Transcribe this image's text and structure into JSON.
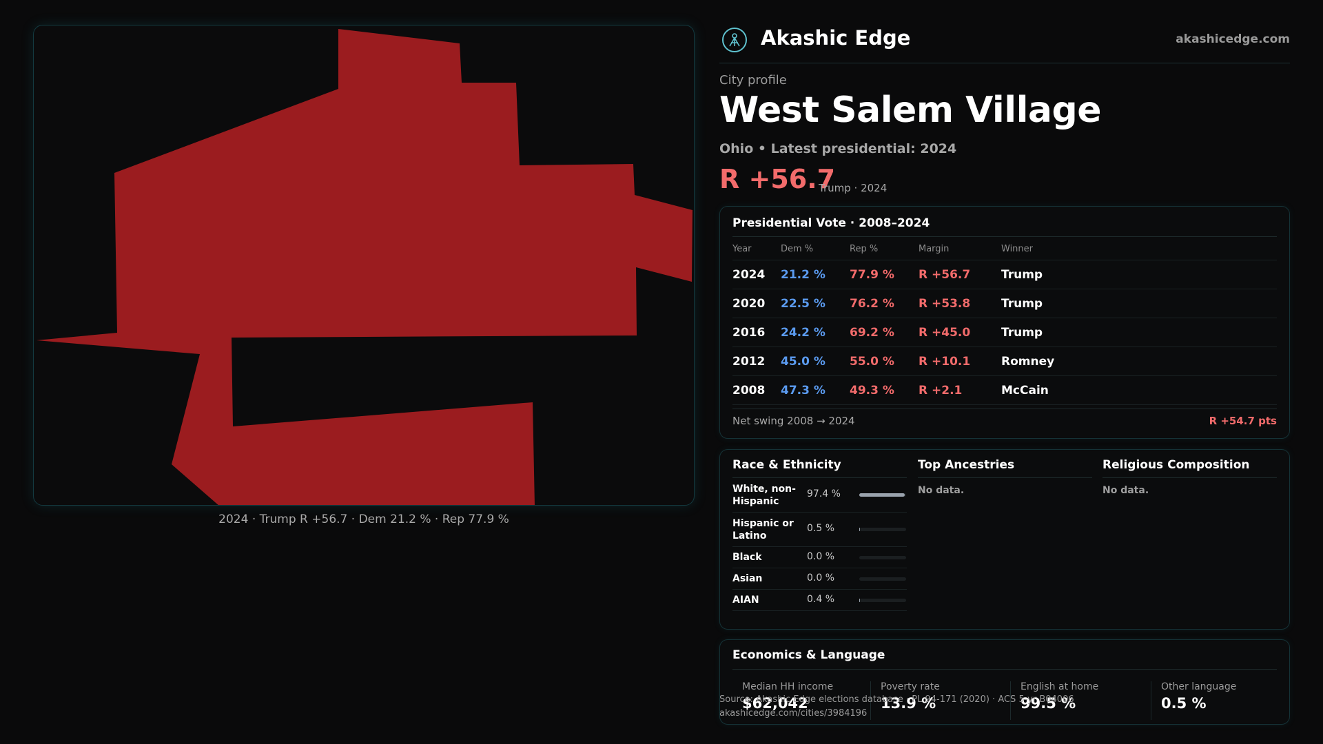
{
  "map": {
    "fill_color": "#9b1c1f",
    "caption": "2024 · Trump R +56.7 · Dem 21.2 % · Rep 77.9 %"
  },
  "brand": {
    "icon": "akashic-logo-icon",
    "name": "Akashic Edge",
    "url": "akashicedge.com"
  },
  "profile": {
    "kicker": "City profile",
    "title": "West Salem Village",
    "subtitle": "Ohio • Latest presidential: 2024",
    "margin": "R +56.7",
    "margin_note": "Trump · 2024"
  },
  "vote": {
    "title": "Presidential Vote · 2008–2024",
    "headers": {
      "year": "Year",
      "dem": "Dem %",
      "rep": "Rep %",
      "margin": "Margin",
      "winner": "Winner"
    },
    "rows": [
      {
        "year": "2024",
        "dem": "21.2 %",
        "rep": "77.9 %",
        "margin": "R +56.7",
        "winner": "Trump"
      },
      {
        "year": "2020",
        "dem": "22.5 %",
        "rep": "76.2 %",
        "margin": "R +53.8",
        "winner": "Trump"
      },
      {
        "year": "2016",
        "dem": "24.2 %",
        "rep": "69.2 %",
        "margin": "R +45.0",
        "winner": "Trump"
      },
      {
        "year": "2012",
        "dem": "45.0 %",
        "rep": "55.0 %",
        "margin": "R +10.1",
        "winner": "Romney"
      },
      {
        "year": "2008",
        "dem": "47.3 %",
        "rep": "49.3 %",
        "margin": "R +2.1",
        "winner": "McCain"
      }
    ],
    "swing_label": "Net swing 2008 → 2024",
    "swing_value": "R +54.7 pts",
    "colors": {
      "dem": "#5b9bf0",
      "rep": "#f26b6b"
    }
  },
  "race": {
    "title": "Race & Ethnicity",
    "rows": [
      {
        "label": "White, non-Hispanic",
        "pct": "97.4 %",
        "share": 0.974
      },
      {
        "label": "Hispanic or Latino",
        "pct": "0.5 %",
        "share": 0.005
      },
      {
        "label": "Black",
        "pct": "0.0 %",
        "share": 0.0
      },
      {
        "label": "Asian",
        "pct": "0.0 %",
        "share": 0.0
      },
      {
        "label": "AIAN",
        "pct": "0.4 %",
        "share": 0.004
      }
    ]
  },
  "ancestries": {
    "title": "Top Ancestries",
    "empty": "No data."
  },
  "religion": {
    "title": "Religious Composition",
    "empty": "No data."
  },
  "economics": {
    "title": "Economics & Language",
    "stats": [
      {
        "label": "Median HH income",
        "value": "$62,042"
      },
      {
        "label": "Poverty rate",
        "value": "13.9 %"
      },
      {
        "label": "English at home",
        "value": "99.5 %"
      },
      {
        "label": "Other language",
        "value": "0.5 %"
      }
    ]
  },
  "sources": {
    "line1": "Source: Akashic Edge elections database · PL 94-171 (2020) · ACS 5-yr B04006",
    "line2": "akashicedge.com/cities/3984196"
  }
}
